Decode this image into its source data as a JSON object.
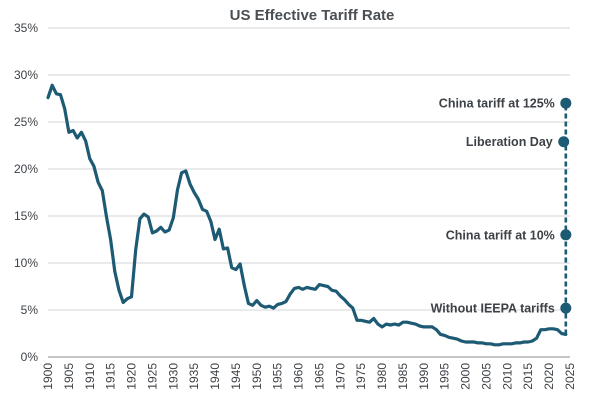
{
  "chart_data": {
    "type": "line",
    "title": "US Effective Tariff Rate",
    "xlabel": "",
    "ylabel": "",
    "xlim": [
      1900,
      2025
    ],
    "ylim": [
      0,
      35
    ],
    "x_ticks": [
      1900,
      1905,
      1910,
      1915,
      1920,
      1925,
      1930,
      1935,
      1940,
      1945,
      1950,
      1955,
      1960,
      1965,
      1970,
      1975,
      1980,
      1985,
      1990,
      1995,
      2000,
      2005,
      2010,
      2015,
      2020,
      2025
    ],
    "y_ticks": [
      0,
      5,
      10,
      15,
      20,
      25,
      30,
      35
    ],
    "y_tick_labels": [
      "0%",
      "5%",
      "10%",
      "15%",
      "20%",
      "25%",
      "30%",
      "35%"
    ],
    "grid": "horizontal",
    "line_color": "#1d5a73",
    "series": [
      {
        "name": "US Effective Tariff Rate",
        "x": [
          1900,
          1901,
          1902,
          1903,
          1904,
          1905,
          1906,
          1907,
          1908,
          1909,
          1910,
          1911,
          1912,
          1913,
          1914,
          1915,
          1916,
          1917,
          1918,
          1919,
          1920,
          1921,
          1922,
          1923,
          1924,
          1925,
          1926,
          1927,
          1928,
          1929,
          1930,
          1931,
          1932,
          1933,
          1934,
          1935,
          1936,
          1937,
          1938,
          1939,
          1940,
          1941,
          1942,
          1943,
          1944,
          1945,
          1946,
          1947,
          1948,
          1949,
          1950,
          1951,
          1952,
          1953,
          1954,
          1955,
          1956,
          1957,
          1958,
          1959,
          1960,
          1961,
          1962,
          1963,
          1964,
          1965,
          1966,
          1967,
          1968,
          1969,
          1970,
          1971,
          1972,
          1973,
          1974,
          1975,
          1976,
          1977,
          1978,
          1979,
          1980,
          1981,
          1982,
          1983,
          1984,
          1985,
          1986,
          1987,
          1988,
          1989,
          1990,
          1991,
          1992,
          1993,
          1994,
          1995,
          1996,
          1997,
          1998,
          1999,
          2000,
          2001,
          2002,
          2003,
          2004,
          2005,
          2006,
          2007,
          2008,
          2009,
          2010,
          2011,
          2012,
          2013,
          2014,
          2015,
          2016,
          2017,
          2018,
          2019,
          2020,
          2021,
          2022,
          2023,
          2024
        ],
        "values": [
          27.6,
          28.9,
          28.0,
          27.9,
          26.4,
          23.9,
          24.1,
          23.3,
          23.9,
          23.0,
          21.1,
          20.3,
          18.6,
          17.7,
          14.9,
          12.5,
          9.1,
          7.1,
          5.8,
          6.2,
          6.4,
          11.4,
          14.7,
          15.2,
          14.9,
          13.2,
          13.4,
          13.8,
          13.3,
          13.5,
          14.8,
          17.8,
          19.6,
          19.8,
          18.4,
          17.5,
          16.8,
          15.7,
          15.5,
          14.4,
          12.5,
          13.6,
          11.5,
          11.6,
          9.5,
          9.3,
          9.9,
          7.6,
          5.7,
          5.5,
          6.0,
          5.5,
          5.3,
          5.4,
          5.2,
          5.6,
          5.7,
          5.9,
          6.7,
          7.3,
          7.4,
          7.2,
          7.4,
          7.3,
          7.2,
          7.7,
          7.6,
          7.5,
          7.1,
          7.0,
          6.5,
          6.1,
          5.6,
          5.2,
          3.9,
          3.9,
          3.8,
          3.7,
          4.1,
          3.5,
          3.2,
          3.5,
          3.4,
          3.5,
          3.4,
          3.7,
          3.7,
          3.6,
          3.5,
          3.3,
          3.2,
          3.2,
          3.2,
          2.9,
          2.4,
          2.3,
          2.1,
          2.0,
          1.9,
          1.7,
          1.6,
          1.6,
          1.6,
          1.5,
          1.5,
          1.4,
          1.4,
          1.3,
          1.3,
          1.4,
          1.4,
          1.4,
          1.5,
          1.5,
          1.6,
          1.6,
          1.7,
          2.0,
          2.9,
          2.9,
          3.0,
          3.0,
          2.9,
          2.5,
          2.4
        ]
      }
    ],
    "annotations": [
      {
        "label": "China tariff at 125%",
        "x": 2024,
        "y": 27.0
      },
      {
        "label": "Liberation Day",
        "x": 2023.5,
        "y": 22.9
      },
      {
        "label": "China tariff at 10%",
        "x": 2024,
        "y": 13.0
      },
      {
        "label": "Without IEEPA tariffs",
        "x": 2024,
        "y": 5.2
      }
    ],
    "dashed_line": {
      "x": [
        2024,
        2024
      ],
      "y": [
        2.4,
        27.0
      ]
    }
  }
}
